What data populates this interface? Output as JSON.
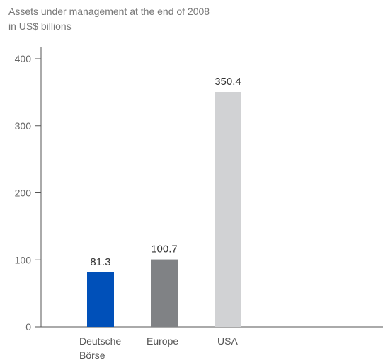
{
  "chart_data": {
    "type": "bar",
    "title": "Assets under management at the end of 2008",
    "subtitle": "in US$ billions",
    "categories": [
      [
        "Deutsche",
        "Börse"
      ],
      [
        "Europe"
      ],
      [
        "USA"
      ]
    ],
    "values": [
      81.3,
      100.7,
      350.4
    ],
    "value_labels": [
      "81.3",
      "100.7",
      "350.4"
    ],
    "colors": [
      "#0050b9",
      "#808285",
      "#d1d2d4"
    ],
    "xlabel": "",
    "ylabel": "",
    "ylim": [
      0,
      410
    ],
    "yticks": [
      0,
      100,
      200,
      300,
      400
    ],
    "grid": false
  }
}
